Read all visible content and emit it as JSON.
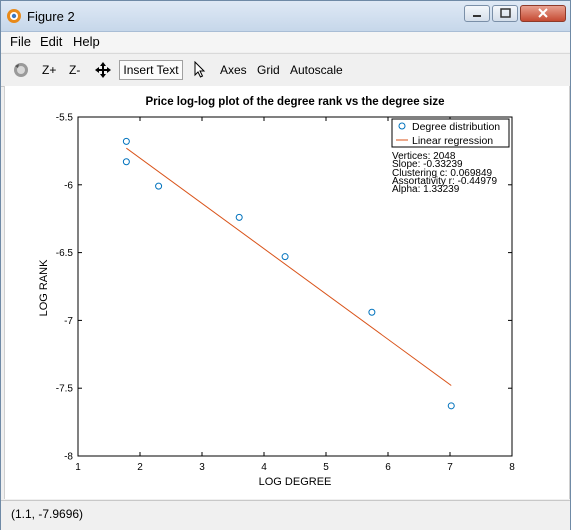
{
  "window": {
    "title": "Figure 2",
    "menu": [
      "File",
      "Edit",
      "Help"
    ],
    "toolbar": {
      "zoom_in": "Z+",
      "zoom_out": "Z-",
      "insert_text": "Insert Text",
      "axes": "Axes",
      "grid": "Grid",
      "autoscale": "Autoscale"
    },
    "icons": {
      "app": "octave-icon",
      "rotate": "rotate-icon",
      "pan": "pan-icon",
      "select": "pointer-icon"
    },
    "status": "(1.1, -7.9696)"
  },
  "chart_data": {
    "type": "scatter",
    "title": "Price log-log plot of the degree rank vs the degree size",
    "xlabel": "LOG DEGREE",
    "ylabel": "LOG RANK",
    "xlim": [
      1,
      8
    ],
    "ylim": [
      -8,
      -5.5
    ],
    "xticks": [
      "1",
      "2",
      "3",
      "4",
      "5",
      "6",
      "7",
      "8"
    ],
    "yticks": [
      "-5.5",
      "-6",
      "-6.5",
      "-7",
      "-7.5",
      "-8"
    ],
    "grid": false,
    "legend_position": "top-right",
    "series": [
      {
        "name": "Degree distribution",
        "kind": "markers",
        "color": "#0072bd",
        "x": [
          1.78,
          1.78,
          2.3,
          3.6,
          4.34,
          5.74,
          7.02
        ],
        "y": [
          -5.68,
          -5.83,
          -6.01,
          -6.24,
          -6.53,
          -6.94,
          -7.63
        ]
      },
      {
        "name": "Linear regression",
        "kind": "line",
        "color": "#d95319",
        "x": [
          1.78,
          7.02
        ],
        "y": [
          -5.73,
          -7.48
        ]
      }
    ],
    "annotation": [
      "Vertices: 2048",
      "Slope: -0.33239",
      "Clustering c: 0.069849",
      "Assortativity r: -0.44979",
      "Alpha: 1.33239"
    ]
  }
}
